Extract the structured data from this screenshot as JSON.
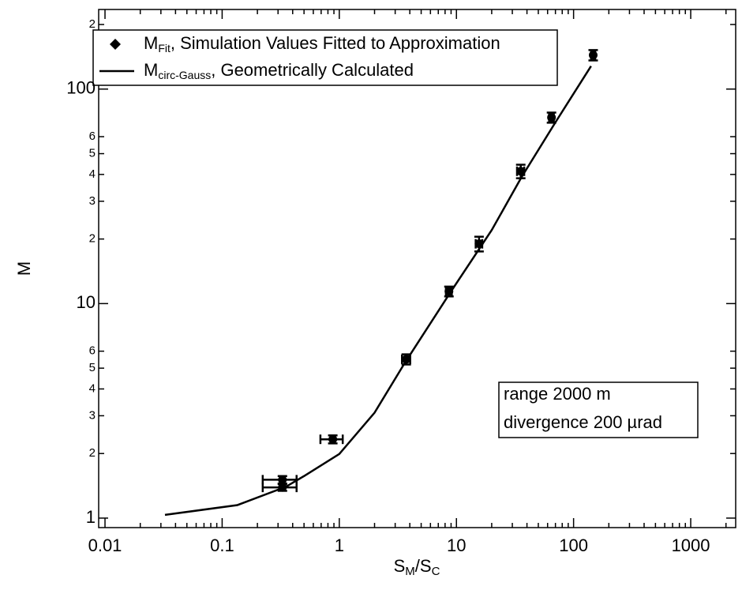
{
  "chart_data": {
    "type": "scatter",
    "y_label": "M",
    "x_label_parts": [
      "S",
      "M",
      "/S",
      "C"
    ],
    "xscale": "log",
    "yscale": "log",
    "xlim": [
      0.00883,
      2420
    ],
    "ylim": [
      0.903,
      235
    ],
    "xticks": [
      0.01,
      0.1,
      1,
      10,
      100,
      1000
    ],
    "xminorticks": [
      0.02,
      0.03,
      0.04,
      0.05,
      0.06,
      0.07,
      0.08,
      0.09,
      0.2,
      0.3,
      0.4,
      0.5,
      0.6,
      0.7,
      0.8,
      0.9,
      2,
      3,
      4,
      5,
      6,
      7,
      8,
      9,
      20,
      30,
      40,
      50,
      60,
      70,
      80,
      90,
      200,
      300,
      400,
      500,
      600,
      700,
      800,
      900,
      2000
    ],
    "yticks": [
      1,
      2,
      3,
      4,
      5,
      6,
      10,
      {
        "value": 20,
        "label": "2"
      },
      {
        "value": 30,
        "label": "3"
      },
      {
        "value": 40,
        "label": "4"
      },
      {
        "value": 50,
        "label": "5"
      },
      {
        "value": 60,
        "label": "6"
      },
      100,
      {
        "value": 200,
        "label": "2"
      }
    ],
    "legend": "upper left",
    "series": [
      {
        "type": "scatter",
        "name": "M",
        "name_sub": "Fit",
        "name_rest": ", Simulation Values Fitted to Approximation",
        "color": "#000000",
        "x": [
          0.327,
          0.327,
          0.88,
          3.73,
          8.63,
          15.6,
          35.4,
          64.8,
          147
        ],
        "values": [
          1.51,
          1.39,
          2.33,
          5.5,
          11.4,
          19.0,
          41.4,
          73.7,
          144
        ],
        "xerr": [
          0.105,
          0.105,
          0.19,
          0.3,
          0.5,
          1.0,
          2.5,
          3.0,
          6.0
        ],
        "yerr": [
          0.06,
          0.05,
          0.1,
          0.3,
          0.6,
          1.5,
          3.0,
          4.0,
          8.0
        ]
      },
      {
        "type": "line",
        "name": "M",
        "name_sub": "circ-Gauss",
        "name_rest": ", Geometrically Calculated",
        "color": "#000000",
        "x": [
          0.0325,
          0.135,
          0.35,
          0.5,
          1,
          2,
          3.6,
          8.9,
          20,
          35.8,
          70,
          141
        ],
        "values": [
          1.035,
          1.15,
          1.4,
          1.57,
          1.99,
          3.1,
          5.26,
          11.3,
          22,
          38.7,
          70,
          128
        ]
      }
    ],
    "annotation": [
      "range 2000 m",
      "divergence 200 µrad"
    ]
  }
}
